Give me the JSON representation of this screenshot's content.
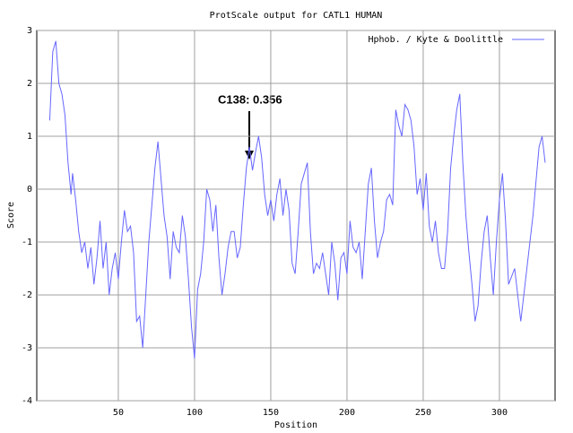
{
  "chart_data": {
    "type": "line",
    "title": "ProtScale output for CATL1 HUMAN",
    "x_label": "Position",
    "y_label": "Score",
    "annotation": "C138: 0.356",
    "xlim": [
      -3.5,
      336.5
    ],
    "ylim": [
      -4,
      3
    ],
    "xticks": [
      50,
      100,
      150,
      200,
      250,
      300
    ],
    "yticks": [
      -4,
      -3,
      -2,
      -1,
      0,
      1,
      2,
      3
    ],
    "grid": true,
    "legend": "upper right",
    "x": [
      5,
      7,
      9,
      11,
      13,
      15,
      17,
      19,
      20,
      22,
      24,
      26,
      28,
      30,
      32,
      34,
      36,
      38,
      40,
      42,
      44,
      46,
      48,
      50,
      52,
      54,
      56,
      58,
      60,
      62,
      64,
      66,
      68,
      70,
      72,
      74,
      76,
      78,
      80,
      82,
      84,
      86,
      88,
      90,
      92,
      94,
      96,
      98,
      100,
      102,
      104,
      106,
      108,
      110,
      112,
      114,
      116,
      118,
      120,
      122,
      124,
      126,
      128,
      130,
      132,
      134,
      136,
      138,
      140,
      142,
      144,
      146,
      148,
      150,
      152,
      154,
      156,
      158,
      160,
      162,
      164,
      166,
      168,
      170,
      172,
      174,
      176,
      178,
      180,
      182,
      184,
      186,
      188,
      190,
      192,
      194,
      196,
      198,
      200,
      202,
      204,
      206,
      208,
      210,
      212,
      214,
      216,
      218,
      220,
      222,
      224,
      226,
      228,
      230,
      232,
      234,
      236,
      238,
      240,
      242,
      244,
      246,
      248,
      250,
      252,
      254,
      256,
      258,
      260,
      262,
      264,
      266,
      268,
      270,
      272,
      274,
      276,
      278,
      280,
      282,
      284,
      286,
      288,
      290,
      292,
      294,
      296,
      298,
      300,
      302,
      304,
      306,
      310,
      314,
      318,
      322,
      326,
      328,
      330
    ],
    "series": [
      {
        "name": "Hphob. / Kyte & Doolittle",
        "color": "#6666ff",
        "values": [
          1.3,
          2.6,
          2.8,
          2.0,
          1.8,
          1.4,
          0.5,
          -0.1,
          0.3,
          -0.2,
          -0.8,
          -1.2,
          -1.0,
          -1.5,
          -1.1,
          -1.8,
          -1.3,
          -0.6,
          -1.5,
          -1.0,
          -2.0,
          -1.5,
          -1.2,
          -1.7,
          -1.0,
          -0.4,
          -0.8,
          -0.7,
          -1.2,
          -2.5,
          -2.4,
          -3.0,
          -2.0,
          -1.0,
          -0.3,
          0.4,
          0.9,
          0.2,
          -0.5,
          -0.9,
          -1.7,
          -0.8,
          -1.1,
          -1.2,
          -0.5,
          -0.9,
          -1.7,
          -2.6,
          -3.2,
          -1.9,
          -1.6,
          -1.0,
          0.0,
          -0.2,
          -0.8,
          -0.3,
          -1.3,
          -2.0,
          -1.6,
          -1.1,
          -0.8,
          -0.8,
          -1.3,
          -1.1,
          -0.3,
          0.4,
          0.8,
          0.356,
          0.7,
          1.0,
          0.6,
          -0.1,
          -0.5,
          -0.2,
          -0.6,
          -0.1,
          0.2,
          -0.5,
          0.0,
          -0.4,
          -1.4,
          -1.6,
          -0.8,
          0.1,
          0.3,
          0.5,
          -0.8,
          -1.6,
          -1.4,
          -1.5,
          -1.2,
          -1.6,
          -2.0,
          -1.0,
          -1.4,
          -2.1,
          -1.3,
          -1.2,
          -1.6,
          -0.6,
          -1.1,
          -1.2,
          -1.0,
          -1.7,
          -0.8,
          0.1,
          0.4,
          -0.6,
          -1.3,
          -1.0,
          -0.8,
          -0.2,
          -0.1,
          -0.3,
          1.5,
          1.2,
          1.0,
          1.6,
          1.5,
          1.3,
          0.8,
          -0.1,
          0.2,
          -0.4,
          0.3,
          -0.7,
          -1.0,
          -0.6,
          -1.2,
          -1.5,
          -1.5,
          -0.8,
          0.4,
          1.0,
          1.5,
          1.8,
          0.5,
          -0.5,
          -1.2,
          -1.8,
          -2.5,
          -2.2,
          -1.4,
          -0.8,
          -0.5,
          -1.3,
          -2.0,
          -1.0,
          -0.2,
          0.3,
          -0.6,
          -1.8,
          -1.5,
          -2.5,
          -1.5,
          -0.5,
          0.8,
          1.0,
          0.5
        ]
      }
    ]
  }
}
